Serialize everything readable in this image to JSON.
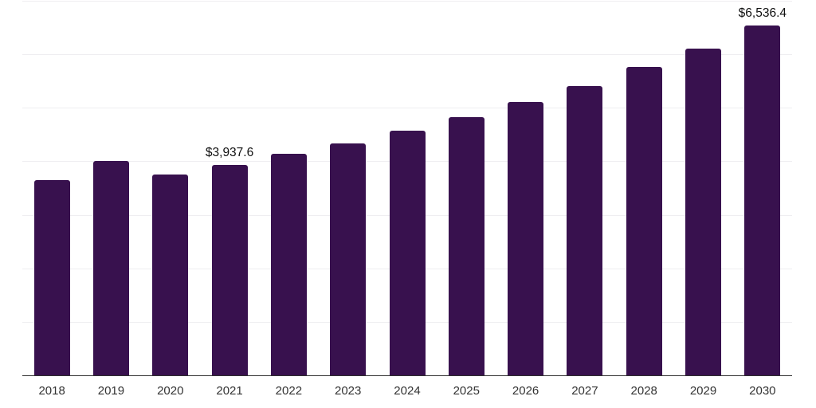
{
  "chart_data": {
    "type": "bar",
    "title": "",
    "xlabel": "",
    "ylabel": "",
    "categories": [
      "2018",
      "2019",
      "2020",
      "2021",
      "2022",
      "2023",
      "2024",
      "2025",
      "2026",
      "2027",
      "2028",
      "2029",
      "2030"
    ],
    "values": [
      3655,
      4000,
      3760,
      3937.6,
      4140,
      4330,
      4580,
      4830,
      5105,
      5400,
      5760,
      6105,
      6536.4
    ],
    "data_labels": [
      {
        "index": 3,
        "text": "$3,937.6"
      },
      {
        "index": 12,
        "text": "$6,536.4"
      }
    ],
    "ylim": [
      0,
      7000
    ],
    "gridline_step": 1000,
    "grid": "horizontal-only",
    "y_axis_ticks_visible": false,
    "legend": "none",
    "value_prefix": "$"
  },
  "style": {
    "bar_color": "#38114e",
    "grid_color": "#efeef1",
    "axis_color": "#2f2f2f",
    "tick_label_color": "#333333",
    "data_label_color": "#101010",
    "background_color": "#ffffff"
  }
}
